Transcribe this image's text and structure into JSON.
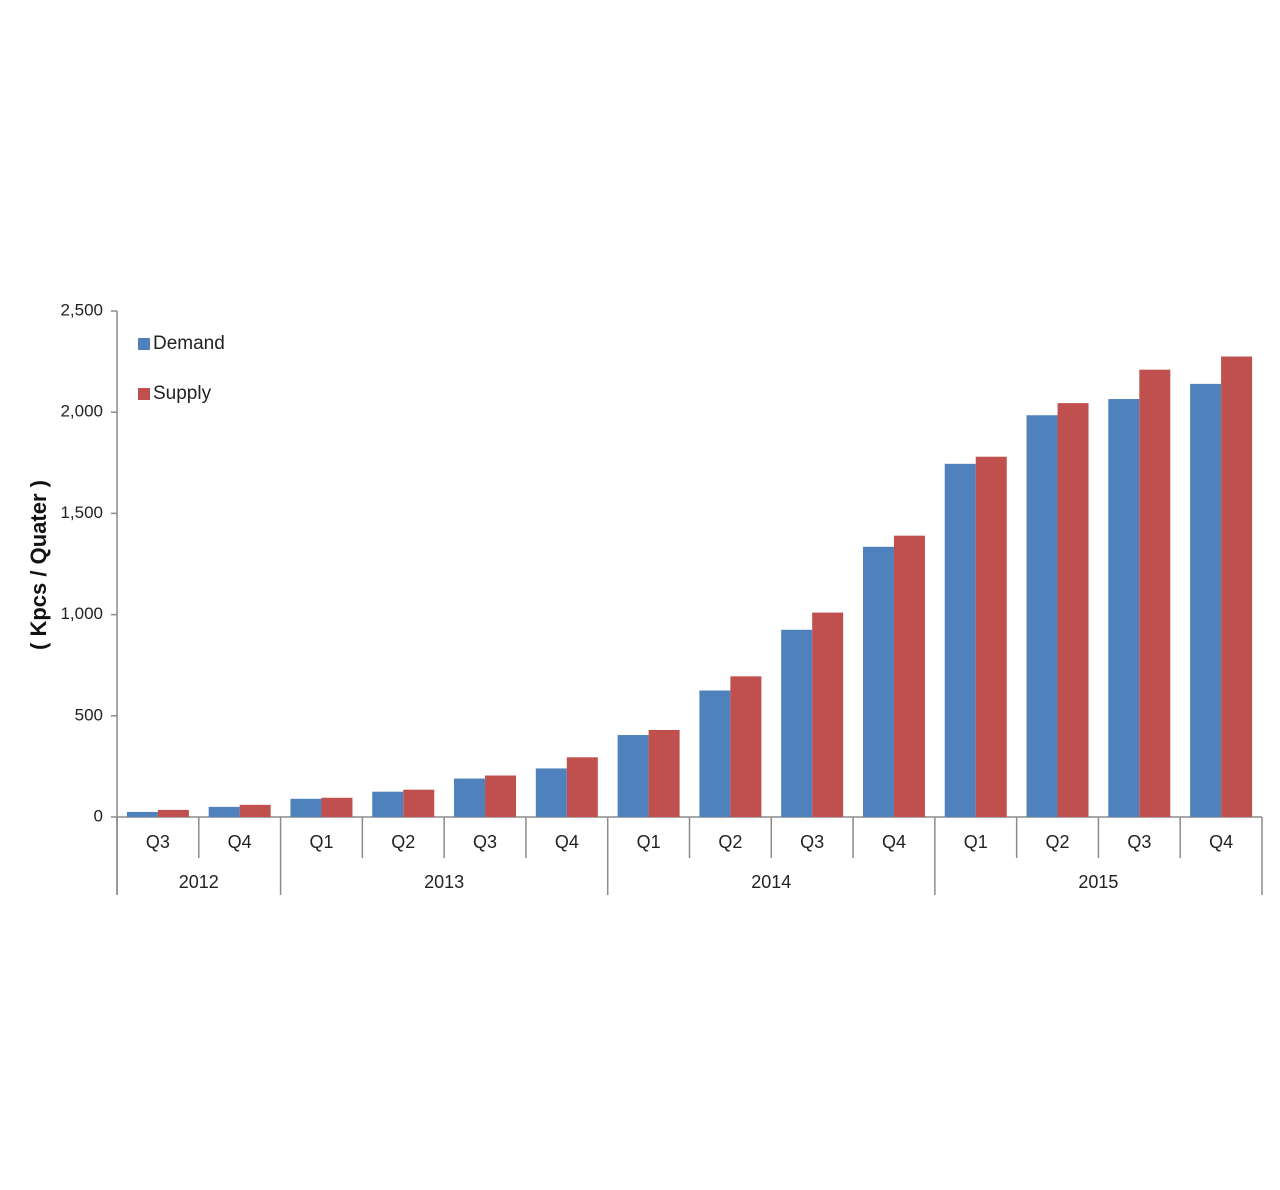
{
  "chart_data": {
    "type": "bar",
    "title": "",
    "ylabel": "( Kpcs / Quater )",
    "xlabel": "",
    "ylim": [
      0,
      2500
    ],
    "yticks": [
      0,
      500,
      1000,
      1500,
      2000,
      2500
    ],
    "ytick_labels": [
      "0",
      "500",
      "1,000",
      "1,500",
      "2,000",
      "2,500"
    ],
    "categories": [
      "Q3",
      "Q4",
      "Q1",
      "Q2",
      "Q3",
      "Q4",
      "Q1",
      "Q2",
      "Q3",
      "Q4",
      "Q1",
      "Q2",
      "Q3",
      "Q4"
    ],
    "groups": [
      {
        "label": "2012",
        "count": 2
      },
      {
        "label": "2013",
        "count": 4
      },
      {
        "label": "2014",
        "count": 4
      },
      {
        "label": "2015",
        "count": 4
      }
    ],
    "series": [
      {
        "name": "Demand",
        "color": "#4F81BD",
        "values": [
          25,
          50,
          90,
          125,
          190,
          240,
          405,
          625,
          925,
          1335,
          1745,
          1985,
          2065,
          2140
        ]
      },
      {
        "name": "Supply",
        "color": "#C0504D",
        "values": [
          35,
          60,
          95,
          135,
          205,
          295,
          430,
          695,
          1010,
          1390,
          1780,
          2045,
          2210,
          2275
        ]
      }
    ],
    "legend_position": "top-left",
    "grid": false
  }
}
